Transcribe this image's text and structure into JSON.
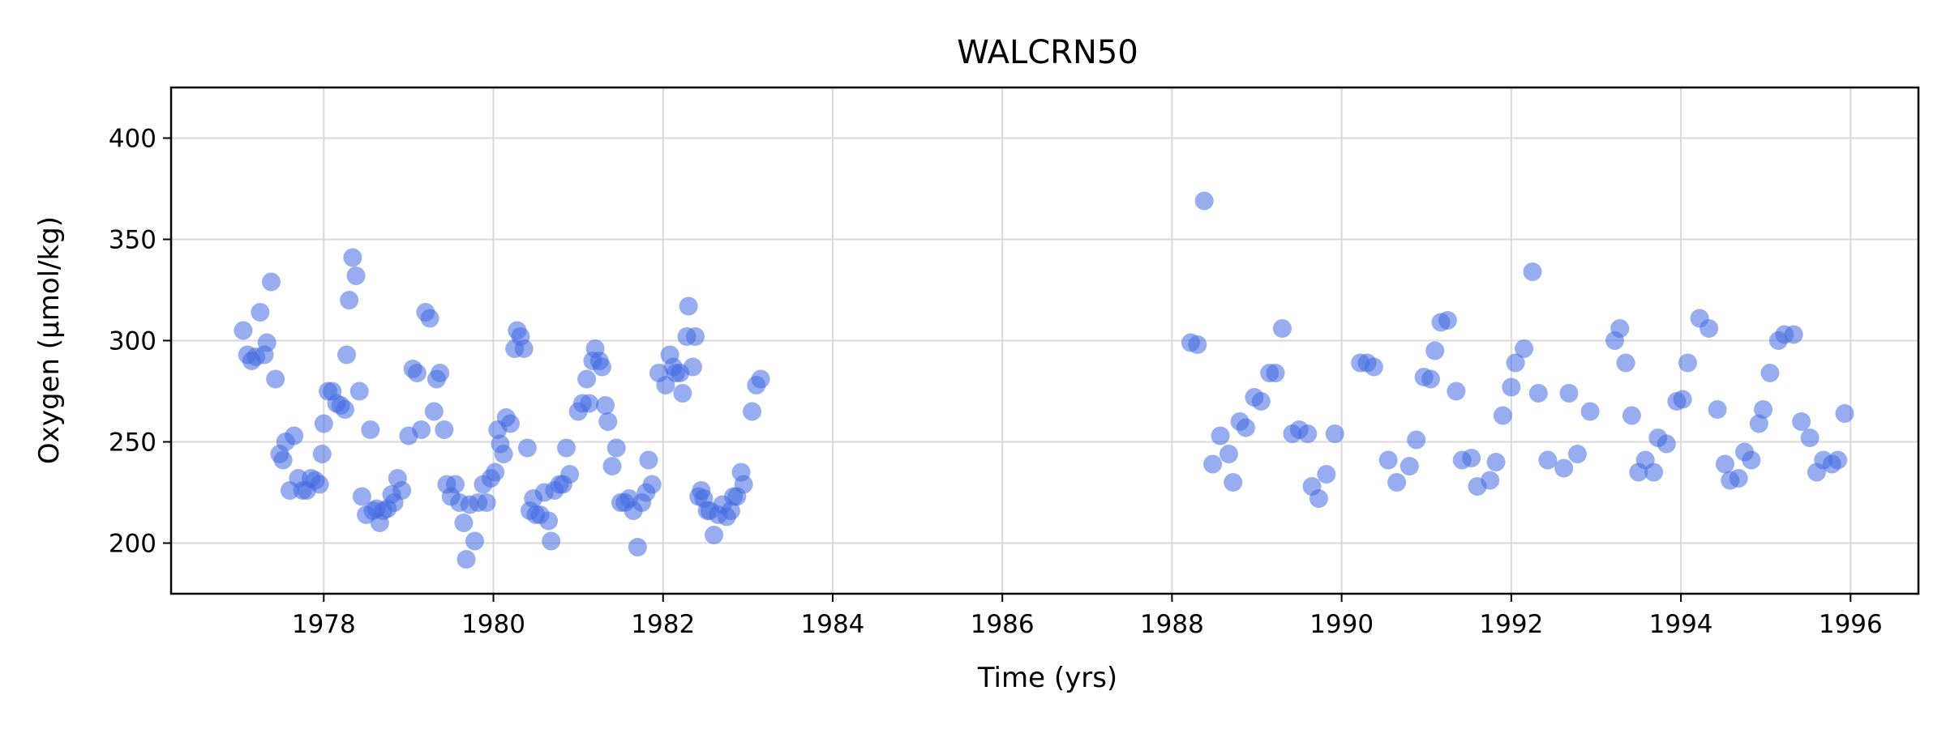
{
  "chart_data": {
    "type": "scatter",
    "title": "WALCRN50",
    "xlabel": "Time (yrs)",
    "ylabel": "Oxygen (µmol/kg)",
    "xlim": [
      1976.2,
      1996.8
    ],
    "ylim": [
      175,
      425
    ],
    "xticks": [
      1978,
      1980,
      1982,
      1984,
      1986,
      1988,
      1990,
      1992,
      1994,
      1996
    ],
    "yticks": [
      200,
      250,
      300,
      350,
      400
    ],
    "grid": true,
    "marker_color": "#4169e1",
    "marker_opacity": 0.55,
    "series": [
      {
        "points": [
          [
            1977.05,
            305
          ],
          [
            1977.1,
            293
          ],
          [
            1977.15,
            290
          ],
          [
            1977.2,
            292
          ],
          [
            1977.25,
            314
          ],
          [
            1977.3,
            293
          ],
          [
            1977.33,
            299
          ],
          [
            1977.38,
            329
          ],
          [
            1977.43,
            281
          ],
          [
            1977.48,
            244
          ],
          [
            1977.52,
            241
          ],
          [
            1977.55,
            250
          ],
          [
            1977.6,
            226
          ],
          [
            1977.65,
            253
          ],
          [
            1977.7,
            232
          ],
          [
            1977.75,
            226
          ],
          [
            1977.8,
            226
          ],
          [
            1977.85,
            232
          ],
          [
            1977.9,
            231
          ],
          [
            1977.95,
            229
          ],
          [
            1977.98,
            244
          ],
          [
            1978.0,
            259
          ],
          [
            1978.05,
            275
          ],
          [
            1978.1,
            275
          ],
          [
            1978.15,
            269
          ],
          [
            1978.2,
            268
          ],
          [
            1978.25,
            266
          ],
          [
            1978.27,
            293
          ],
          [
            1978.3,
            320
          ],
          [
            1978.34,
            341
          ],
          [
            1978.38,
            332
          ],
          [
            1978.42,
            275
          ],
          [
            1978.45,
            223
          ],
          [
            1978.5,
            214
          ],
          [
            1978.55,
            256
          ],
          [
            1978.58,
            216
          ],
          [
            1978.62,
            217
          ],
          [
            1978.66,
            210
          ],
          [
            1978.7,
            216
          ],
          [
            1978.75,
            217
          ],
          [
            1978.8,
            224
          ],
          [
            1978.83,
            220
          ],
          [
            1978.87,
            232
          ],
          [
            1978.92,
            226
          ],
          [
            1979.0,
            253
          ],
          [
            1979.05,
            286
          ],
          [
            1979.1,
            284
          ],
          [
            1979.15,
            256
          ],
          [
            1979.2,
            314
          ],
          [
            1979.25,
            311
          ],
          [
            1979.3,
            265
          ],
          [
            1979.33,
            281
          ],
          [
            1979.37,
            284
          ],
          [
            1979.42,
            256
          ],
          [
            1979.45,
            229
          ],
          [
            1979.5,
            223
          ],
          [
            1979.55,
            229
          ],
          [
            1979.6,
            220
          ],
          [
            1979.65,
            210
          ],
          [
            1979.68,
            192
          ],
          [
            1979.72,
            219
          ],
          [
            1979.78,
            201
          ],
          [
            1979.82,
            220
          ],
          [
            1979.88,
            229
          ],
          [
            1979.92,
            220
          ],
          [
            1979.97,
            232
          ],
          [
            1980.02,
            235
          ],
          [
            1980.05,
            256
          ],
          [
            1980.08,
            249
          ],
          [
            1980.12,
            244
          ],
          [
            1980.15,
            262
          ],
          [
            1980.2,
            259
          ],
          [
            1980.25,
            296
          ],
          [
            1980.28,
            305
          ],
          [
            1980.32,
            302
          ],
          [
            1980.36,
            296
          ],
          [
            1980.4,
            247
          ],
          [
            1980.43,
            216
          ],
          [
            1980.47,
            222
          ],
          [
            1980.5,
            214
          ],
          [
            1980.55,
            214
          ],
          [
            1980.6,
            225
          ],
          [
            1980.65,
            211
          ],
          [
            1980.68,
            201
          ],
          [
            1980.72,
            226
          ],
          [
            1980.78,
            229
          ],
          [
            1980.82,
            229
          ],
          [
            1980.86,
            247
          ],
          [
            1980.9,
            234
          ],
          [
            1981.0,
            265
          ],
          [
            1981.05,
            269
          ],
          [
            1981.1,
            281
          ],
          [
            1981.13,
            269
          ],
          [
            1981.17,
            290
          ],
          [
            1981.2,
            296
          ],
          [
            1981.25,
            290
          ],
          [
            1981.28,
            287
          ],
          [
            1981.32,
            268
          ],
          [
            1981.35,
            260
          ],
          [
            1981.4,
            238
          ],
          [
            1981.45,
            247
          ],
          [
            1981.5,
            220
          ],
          [
            1981.55,
            220
          ],
          [
            1981.6,
            222
          ],
          [
            1981.65,
            216
          ],
          [
            1981.7,
            198
          ],
          [
            1981.75,
            220
          ],
          [
            1981.8,
            225
          ],
          [
            1981.83,
            241
          ],
          [
            1981.87,
            229
          ],
          [
            1981.95,
            284
          ],
          [
            1982.03,
            278
          ],
          [
            1982.08,
            293
          ],
          [
            1982.12,
            287
          ],
          [
            1982.15,
            284
          ],
          [
            1982.2,
            284
          ],
          [
            1982.23,
            274
          ],
          [
            1982.28,
            302
          ],
          [
            1982.3,
            317
          ],
          [
            1982.35,
            287
          ],
          [
            1982.38,
            302
          ],
          [
            1982.42,
            223
          ],
          [
            1982.45,
            226
          ],
          [
            1982.48,
            222
          ],
          [
            1982.52,
            216
          ],
          [
            1982.55,
            216
          ],
          [
            1982.6,
            204
          ],
          [
            1982.65,
            214
          ],
          [
            1982.7,
            219
          ],
          [
            1982.75,
            213
          ],
          [
            1982.8,
            216
          ],
          [
            1982.83,
            223
          ],
          [
            1982.87,
            223
          ],
          [
            1982.92,
            235
          ],
          [
            1982.95,
            229
          ],
          [
            1983.05,
            265
          ],
          [
            1983.1,
            278
          ],
          [
            1983.15,
            281
          ],
          [
            1988.22,
            299
          ],
          [
            1988.3,
            298
          ],
          [
            1988.38,
            369
          ],
          [
            1988.48,
            239
          ],
          [
            1988.57,
            253
          ],
          [
            1988.67,
            244
          ],
          [
            1988.72,
            230
          ],
          [
            1988.8,
            260
          ],
          [
            1988.87,
            257
          ],
          [
            1988.97,
            272
          ],
          [
            1989.05,
            270
          ],
          [
            1989.15,
            284
          ],
          [
            1989.22,
            284
          ],
          [
            1989.3,
            306
          ],
          [
            1989.42,
            254
          ],
          [
            1989.5,
            256
          ],
          [
            1989.6,
            254
          ],
          [
            1989.65,
            228
          ],
          [
            1989.73,
            222
          ],
          [
            1989.82,
            234
          ],
          [
            1989.92,
            254
          ],
          [
            1990.22,
            289
          ],
          [
            1990.3,
            289
          ],
          [
            1990.38,
            287
          ],
          [
            1990.55,
            241
          ],
          [
            1990.65,
            230
          ],
          [
            1990.8,
            238
          ],
          [
            1990.88,
            251
          ],
          [
            1990.97,
            282
          ],
          [
            1991.05,
            281
          ],
          [
            1991.1,
            295
          ],
          [
            1991.17,
            309
          ],
          [
            1991.25,
            310
          ],
          [
            1991.35,
            275
          ],
          [
            1991.42,
            241
          ],
          [
            1991.53,
            242
          ],
          [
            1991.6,
            228
          ],
          [
            1991.75,
            231
          ],
          [
            1991.82,
            240
          ],
          [
            1991.9,
            263
          ],
          [
            1992.0,
            277
          ],
          [
            1992.05,
            289
          ],
          [
            1992.15,
            296
          ],
          [
            1992.25,
            334
          ],
          [
            1992.32,
            274
          ],
          [
            1992.43,
            241
          ],
          [
            1992.62,
            237
          ],
          [
            1992.68,
            274
          ],
          [
            1992.78,
            244
          ],
          [
            1992.93,
            265
          ],
          [
            1993.22,
            300
          ],
          [
            1993.28,
            306
          ],
          [
            1993.35,
            289
          ],
          [
            1993.42,
            263
          ],
          [
            1993.5,
            235
          ],
          [
            1993.58,
            241
          ],
          [
            1993.68,
            235
          ],
          [
            1993.73,
            252
          ],
          [
            1993.83,
            249
          ],
          [
            1993.95,
            270
          ],
          [
            1994.02,
            271
          ],
          [
            1994.08,
            289
          ],
          [
            1994.22,
            311
          ],
          [
            1994.33,
            306
          ],
          [
            1994.43,
            266
          ],
          [
            1994.52,
            239
          ],
          [
            1994.58,
            231
          ],
          [
            1994.68,
            232
          ],
          [
            1994.75,
            245
          ],
          [
            1994.83,
            241
          ],
          [
            1994.92,
            259
          ],
          [
            1994.97,
            266
          ],
          [
            1995.05,
            284
          ],
          [
            1995.15,
            300
          ],
          [
            1995.22,
            303
          ],
          [
            1995.33,
            303
          ],
          [
            1995.42,
            260
          ],
          [
            1995.52,
            252
          ],
          [
            1995.6,
            235
          ],
          [
            1995.68,
            241
          ],
          [
            1995.78,
            239
          ],
          [
            1995.85,
            241
          ],
          [
            1995.93,
            264
          ]
        ]
      }
    ]
  }
}
